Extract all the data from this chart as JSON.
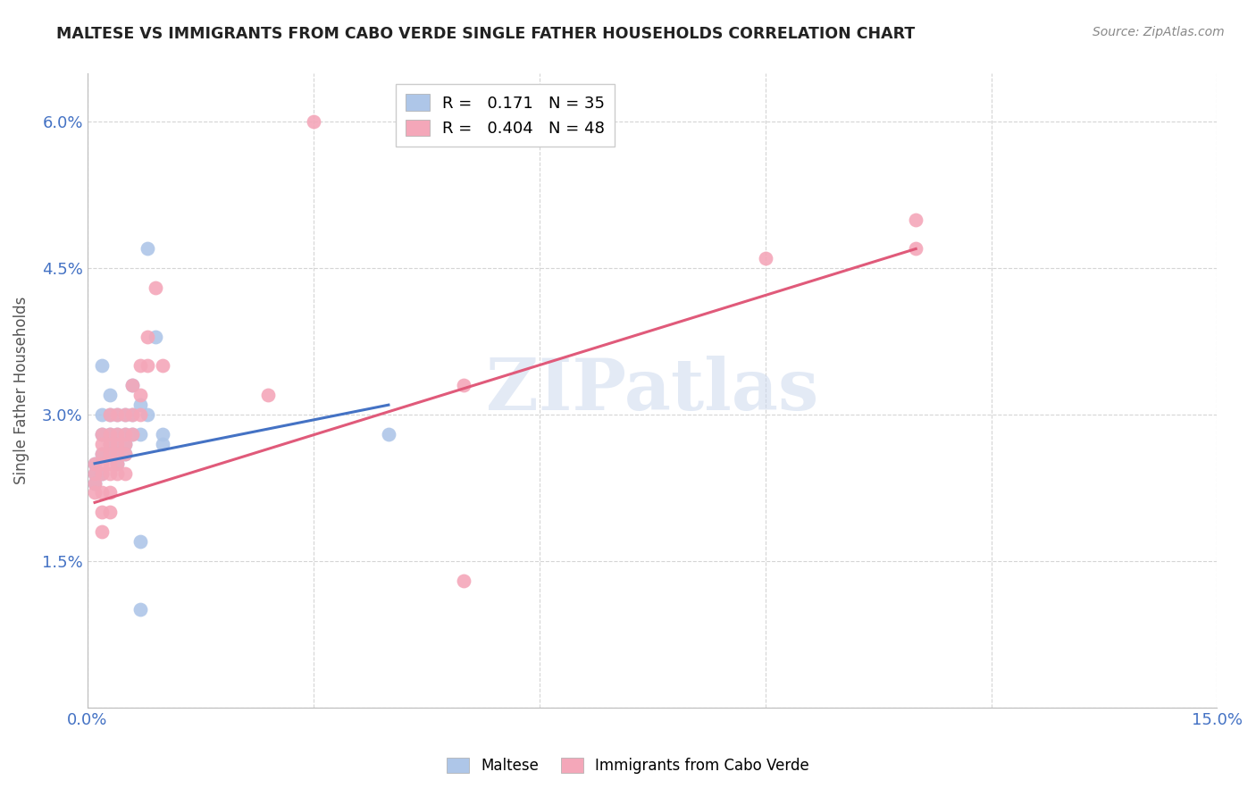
{
  "title": "MALTESE VS IMMIGRANTS FROM CABO VERDE SINGLE FATHER HOUSEHOLDS CORRELATION CHART",
  "source": "Source: ZipAtlas.com",
  "ylabel": "Single Father Households",
  "xlim": [
    0.0,
    0.15
  ],
  "ylim": [
    0.0,
    0.065
  ],
  "xticks": [
    0.0,
    0.03,
    0.06,
    0.09,
    0.12,
    0.15
  ],
  "xticklabels": [
    "0.0%",
    "",
    "",
    "",
    "",
    "15.0%"
  ],
  "yticks": [
    0.0,
    0.015,
    0.03,
    0.045,
    0.06
  ],
  "yticklabels": [
    "",
    "1.5%",
    "3.0%",
    "4.5%",
    "6.0%"
  ],
  "blue_color": "#aec6e8",
  "pink_color": "#f4a7b9",
  "blue_line_color": "#4472c4",
  "pink_line_color": "#e05a7a",
  "legend_blue_label": "R =   0.171   N = 35",
  "legend_pink_label": "R =   0.404   N = 48",
  "legend_maltese": "Maltese",
  "legend_cabo_verde": "Immigrants from Cabo Verde",
  "watermark": "ZIPatlas",
  "blue_points": [
    [
      0.001,
      0.025
    ],
    [
      0.001,
      0.024
    ],
    [
      0.001,
      0.023
    ],
    [
      0.002,
      0.035
    ],
    [
      0.002,
      0.03
    ],
    [
      0.002,
      0.028
    ],
    [
      0.002,
      0.026
    ],
    [
      0.002,
      0.024
    ],
    [
      0.003,
      0.032
    ],
    [
      0.003,
      0.03
    ],
    [
      0.003,
      0.028
    ],
    [
      0.003,
      0.027
    ],
    [
      0.003,
      0.026
    ],
    [
      0.004,
      0.03
    ],
    [
      0.004,
      0.028
    ],
    [
      0.004,
      0.027
    ],
    [
      0.004,
      0.026
    ],
    [
      0.004,
      0.025
    ],
    [
      0.005,
      0.03
    ],
    [
      0.005,
      0.028
    ],
    [
      0.005,
      0.027
    ],
    [
      0.005,
      0.026
    ],
    [
      0.006,
      0.033
    ],
    [
      0.006,
      0.03
    ],
    [
      0.006,
      0.028
    ],
    [
      0.007,
      0.031
    ],
    [
      0.007,
      0.028
    ],
    [
      0.008,
      0.047
    ],
    [
      0.008,
      0.03
    ],
    [
      0.009,
      0.038
    ],
    [
      0.01,
      0.027
    ],
    [
      0.01,
      0.028
    ],
    [
      0.04,
      0.028
    ],
    [
      0.007,
      0.017
    ],
    [
      0.007,
      0.01
    ]
  ],
  "pink_points": [
    [
      0.001,
      0.025
    ],
    [
      0.001,
      0.024
    ],
    [
      0.001,
      0.023
    ],
    [
      0.001,
      0.022
    ],
    [
      0.002,
      0.028
    ],
    [
      0.002,
      0.027
    ],
    [
      0.002,
      0.026
    ],
    [
      0.002,
      0.025
    ],
    [
      0.002,
      0.024
    ],
    [
      0.002,
      0.022
    ],
    [
      0.002,
      0.02
    ],
    [
      0.002,
      0.018
    ],
    [
      0.003,
      0.03
    ],
    [
      0.003,
      0.028
    ],
    [
      0.003,
      0.027
    ],
    [
      0.003,
      0.026
    ],
    [
      0.003,
      0.025
    ],
    [
      0.003,
      0.024
    ],
    [
      0.003,
      0.022
    ],
    [
      0.003,
      0.02
    ],
    [
      0.004,
      0.03
    ],
    [
      0.004,
      0.028
    ],
    [
      0.004,
      0.027
    ],
    [
      0.004,
      0.026
    ],
    [
      0.004,
      0.025
    ],
    [
      0.004,
      0.024
    ],
    [
      0.005,
      0.03
    ],
    [
      0.005,
      0.028
    ],
    [
      0.005,
      0.027
    ],
    [
      0.005,
      0.026
    ],
    [
      0.005,
      0.024
    ],
    [
      0.006,
      0.033
    ],
    [
      0.006,
      0.03
    ],
    [
      0.006,
      0.028
    ],
    [
      0.007,
      0.035
    ],
    [
      0.007,
      0.032
    ],
    [
      0.007,
      0.03
    ],
    [
      0.008,
      0.038
    ],
    [
      0.008,
      0.035
    ],
    [
      0.009,
      0.043
    ],
    [
      0.01,
      0.035
    ],
    [
      0.024,
      0.032
    ],
    [
      0.03,
      0.06
    ],
    [
      0.05,
      0.033
    ],
    [
      0.05,
      0.013
    ],
    [
      0.09,
      0.046
    ],
    [
      0.11,
      0.05
    ],
    [
      0.11,
      0.047
    ]
  ]
}
